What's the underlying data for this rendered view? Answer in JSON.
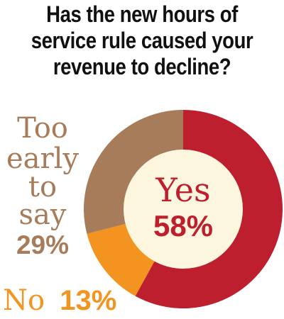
{
  "title_lines": [
    "Has the new hours of",
    "service rule caused your",
    "revenue to decline?"
  ],
  "colors": {
    "yes": "#bd1f2e",
    "no": "#f39420",
    "too_early": "#a67c5b",
    "center": "#fdf6df"
  },
  "chart_data": {
    "type": "pie",
    "style": "donut",
    "title": "Has the new hours of service rule caused your revenue to decline?",
    "slices": [
      {
        "label": "Yes",
        "value": 58,
        "value_label": "58%",
        "color": "#bd1f2e"
      },
      {
        "label": "No",
        "value": 13,
        "value_label": "13%",
        "color": "#f39420"
      },
      {
        "label_lines": [
          "Too",
          "early",
          "to",
          "say"
        ],
        "value": 29,
        "value_label": "29%",
        "color": "#a67c5b"
      }
    ]
  }
}
